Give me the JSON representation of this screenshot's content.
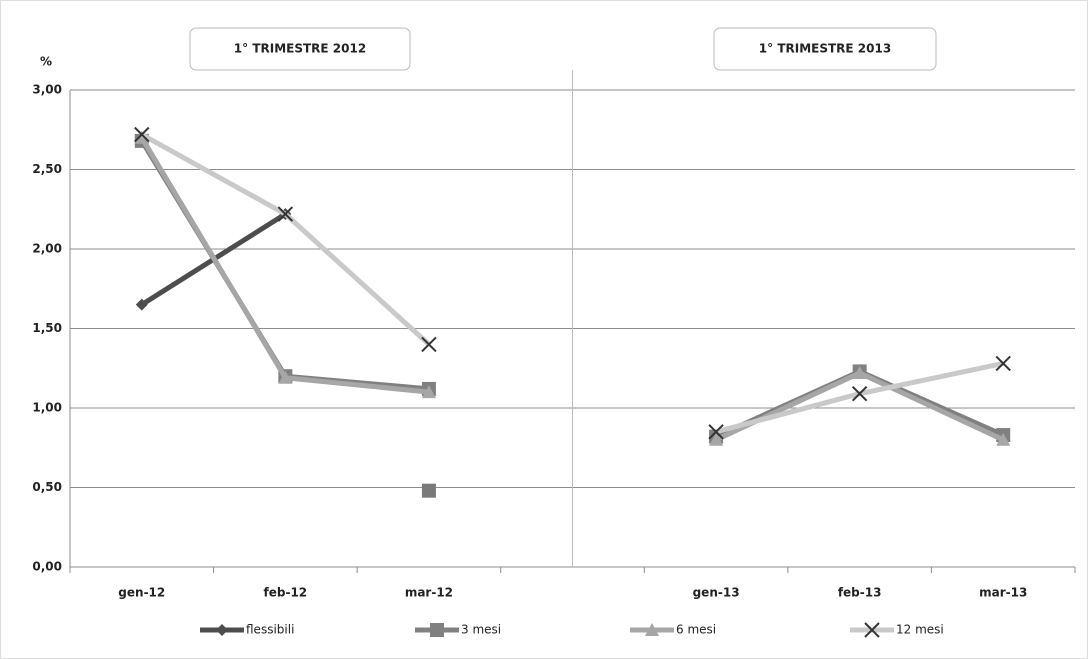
{
  "chart_data": {
    "type": "line",
    "y_label": "%",
    "annotations": [
      "1° TRIMESTRE 2012",
      "1° TRIMESTRE 2013"
    ],
    "categories": [
      "gen-12",
      "feb-12",
      "mar-12",
      null,
      "gen-13",
      "feb-13",
      "mar-13"
    ],
    "series": [
      {
        "name": "flessibili",
        "color": "#4d4d4d",
        "marker": "diamond",
        "values": [
          1.65,
          2.22,
          null,
          null,
          null,
          null,
          null
        ]
      },
      {
        "name": "3 mesi",
        "color": "#808080",
        "marker": "square",
        "values": [
          2.68,
          1.2,
          1.12,
          null,
          0.82,
          1.23,
          0.83
        ]
      },
      {
        "name": "6 mesi",
        "color": "#a6a6a6",
        "marker": "triangle",
        "values": [
          2.7,
          1.19,
          1.1,
          null,
          0.8,
          1.22,
          0.8
        ]
      },
      {
        "name": "12 mesi",
        "color": "#c9c9c9",
        "marker": "x",
        "values": [
          2.72,
          2.22,
          1.4,
          null,
          0.85,
          1.09,
          1.28
        ]
      }
    ],
    "extra_points": [
      {
        "x": "mar-12",
        "y": 0.48,
        "color": "#7a7a7a",
        "marker": "square"
      }
    ],
    "ylim": [
      0,
      3
    ],
    "yticks": [
      {
        "value": 0,
        "label": "0,00"
      },
      {
        "value": 0.5,
        "label": "0,50"
      },
      {
        "value": 1,
        "label": "1,00"
      },
      {
        "value": 1.5,
        "label": "1,50"
      },
      {
        "value": 2,
        "label": "2,00"
      },
      {
        "value": 2.5,
        "label": "2,50"
      },
      {
        "value": 3,
        "label": "3,00"
      }
    ],
    "grid": true
  }
}
